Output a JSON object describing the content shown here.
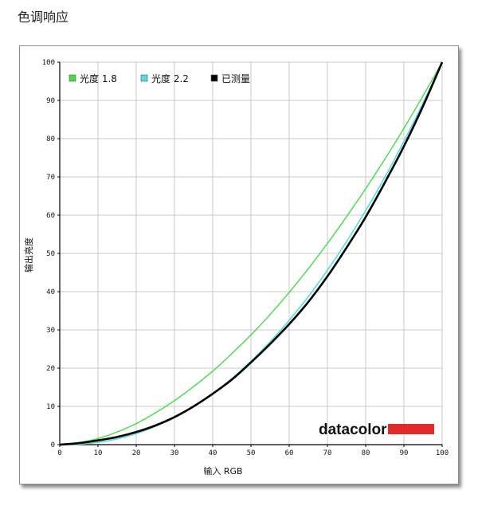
{
  "header": {
    "title": "色调响应"
  },
  "chart_data": {
    "type": "line",
    "xlabel": "输入 RGB",
    "ylabel": "输出亮度",
    "xlim": [
      0,
      100
    ],
    "ylim": [
      0,
      100
    ],
    "x_ticks": [
      0,
      10,
      20,
      30,
      40,
      50,
      60,
      70,
      80,
      90,
      100
    ],
    "y_ticks": [
      0,
      10,
      20,
      30,
      40,
      50,
      60,
      70,
      80,
      90,
      100
    ],
    "grid": true,
    "legend_position": "top-left",
    "series": [
      {
        "name": "光度 1.8",
        "color": "#44dd44",
        "x": [
          0,
          5,
          10,
          15,
          20,
          25,
          30,
          35,
          40,
          45,
          50,
          55,
          60,
          65,
          70,
          75,
          80,
          85,
          90,
          95,
          100
        ],
        "y": [
          0,
          0.5,
          1.6,
          3.3,
          5.5,
          8.3,
          11.5,
          15.2,
          19.2,
          23.8,
          28.7,
          34.0,
          39.8,
          46.0,
          52.6,
          59.6,
          66.9,
          74.6,
          82.7,
          91.2,
          100
        ]
      },
      {
        "name": "光度 2.2",
        "color": "#55dddd",
        "x": [
          0,
          5,
          10,
          15,
          20,
          25,
          30,
          35,
          40,
          45,
          50,
          55,
          60,
          65,
          70,
          75,
          80,
          85,
          90,
          95,
          100
        ],
        "y": [
          0,
          0.1,
          0.6,
          1.5,
          2.9,
          4.8,
          7.1,
          9.9,
          13.3,
          17.3,
          21.8,
          26.9,
          32.5,
          38.7,
          45.6,
          53.1,
          61.2,
          69.9,
          79.3,
          89.3,
          100
        ]
      },
      {
        "name": "已测量",
        "color": "#000000",
        "x": [
          0,
          5,
          10,
          15,
          20,
          25,
          30,
          35,
          40,
          45,
          50,
          55,
          60,
          65,
          70,
          75,
          80,
          85,
          90,
          95,
          100
        ],
        "y": [
          0,
          0.4,
          1.1,
          2.0,
          3.3,
          5.0,
          7.2,
          10.0,
          13.3,
          17.0,
          21.5,
          26.3,
          31.5,
          37.3,
          44.0,
          51.5,
          59.5,
          68.5,
          78.0,
          88.5,
          100
        ]
      }
    ]
  },
  "logo": {
    "text": "datacolor",
    "bar_color": "#e02a2a"
  }
}
